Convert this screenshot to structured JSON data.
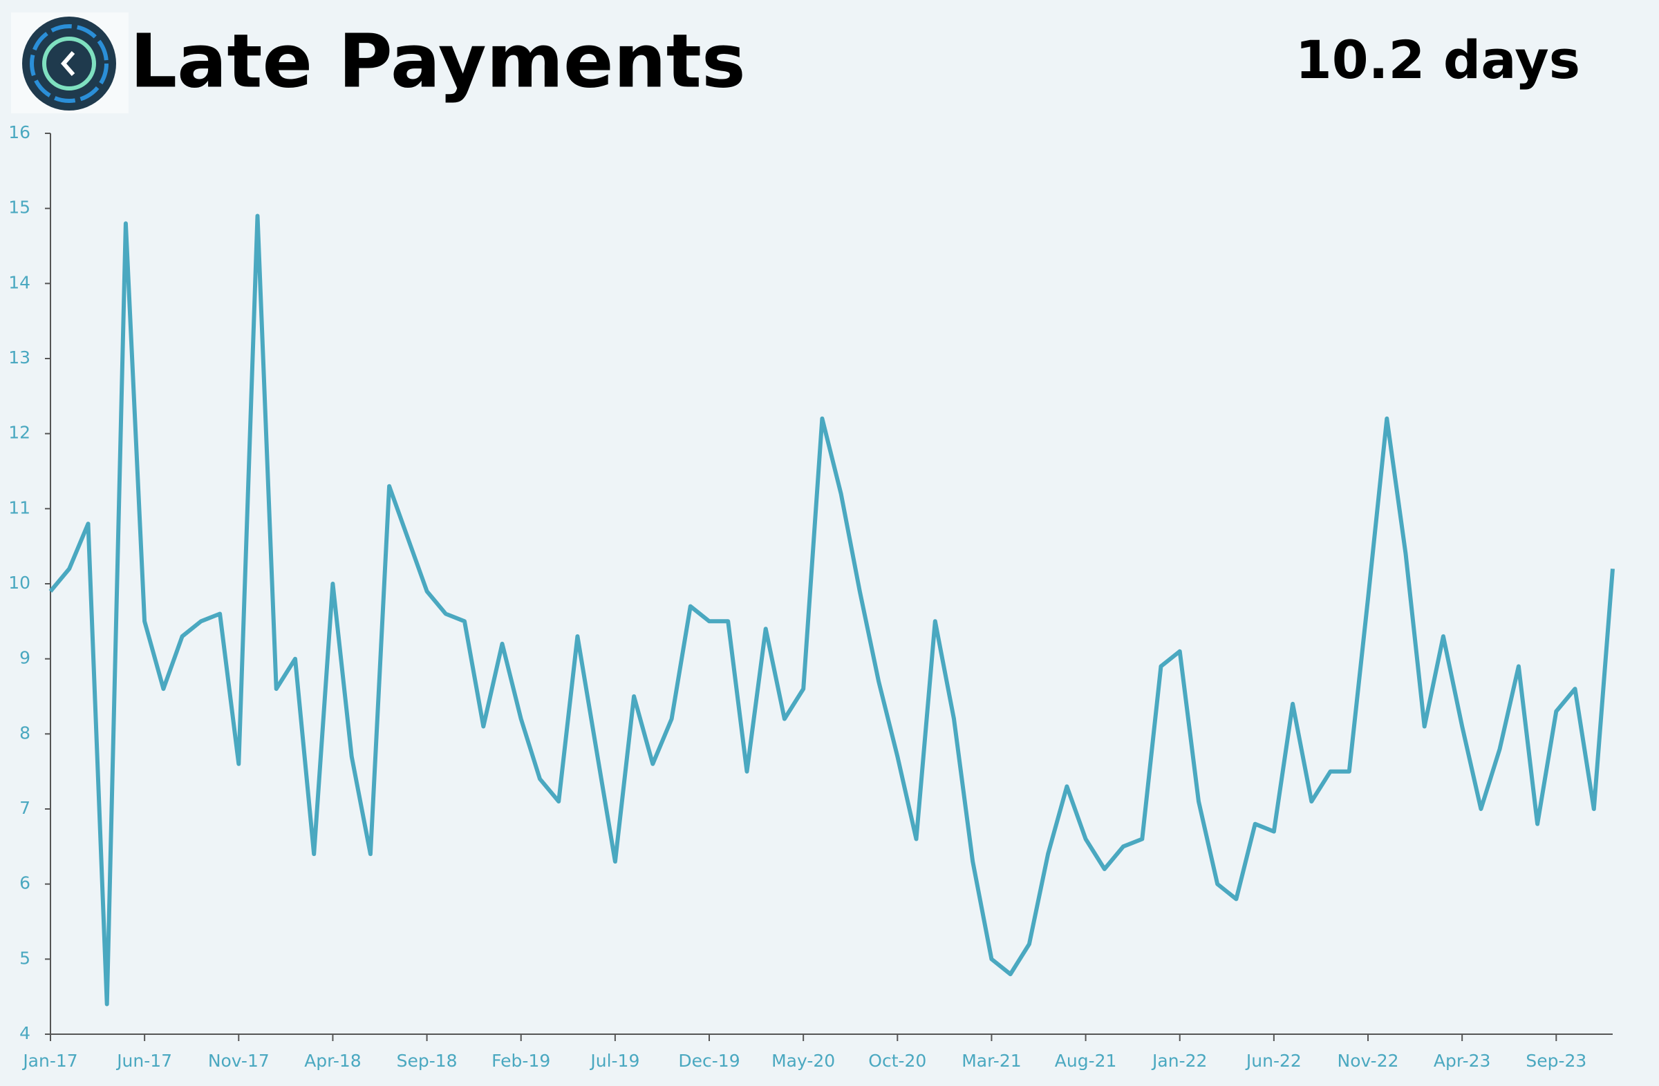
{
  "chart_data": {
    "type": "line",
    "title": "Late Payments",
    "kpi": "10.2 days",
    "categories": [
      "Jan-17",
      null,
      null,
      null,
      null,
      "Jun-17",
      null,
      null,
      null,
      null,
      "Nov-17",
      null,
      null,
      null,
      null,
      "Apr-18",
      null,
      null,
      null,
      null,
      "Sep-18",
      null,
      null,
      null,
      null,
      "Feb-19",
      null,
      null,
      null,
      null,
      "Jul-19",
      null,
      null,
      null,
      null,
      "Dec-19",
      null,
      null,
      null,
      null,
      "May-20",
      null,
      null,
      null,
      null,
      "Oct-20",
      null,
      null,
      null,
      null,
      "Mar-21",
      null,
      null,
      null,
      null,
      "Aug-21",
      null,
      null,
      null,
      null,
      "Jan-22",
      null,
      null,
      null,
      null,
      "Jun-22",
      null,
      null,
      null,
      null,
      "Nov-22",
      null,
      null,
      null,
      null,
      "Apr-23",
      null,
      null,
      null,
      null,
      "Sep-23",
      null,
      null,
      null
    ],
    "values": [
      9.9,
      10.2,
      10.8,
      4.4,
      14.8,
      9.5,
      8.6,
      9.3,
      9.5,
      9.6,
      7.6,
      14.9,
      8.6,
      9.0,
      6.4,
      10.0,
      7.7,
      6.4,
      11.3,
      10.6,
      9.9,
      9.6,
      9.5,
      8.1,
      9.2,
      8.2,
      7.4,
      7.1,
      9.3,
      7.8,
      6.3,
      8.5,
      7.6,
      8.2,
      9.7,
      9.5,
      9.5,
      7.5,
      9.4,
      8.2,
      8.6,
      12.2,
      11.2,
      9.9,
      8.7,
      7.7,
      6.6,
      9.5,
      8.2,
      6.3,
      5.0,
      4.8,
      5.2,
      6.4,
      7.3,
      6.6,
      6.2,
      6.5,
      6.6,
      8.9,
      9.1,
      7.1,
      6.0,
      5.8,
      6.8,
      6.7,
      8.4,
      7.1,
      7.5,
      7.5,
      9.8,
      12.2,
      10.4,
      8.1,
      9.3,
      8.1,
      7.0,
      7.8,
      8.9,
      6.8,
      8.3,
      8.6,
      7.0,
      10.2
    ],
    "color": "#4aa8c0",
    "ylim": [
      4,
      16
    ],
    "yticks": [
      4,
      5,
      6,
      7,
      8,
      9,
      10,
      11,
      12,
      13,
      14,
      15,
      16
    ]
  }
}
